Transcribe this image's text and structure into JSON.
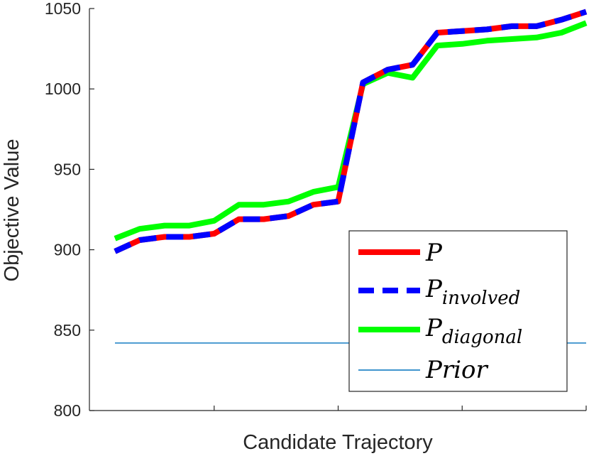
{
  "chart_data": {
    "type": "line",
    "title": "",
    "xlabel": "Candidate Trajectory",
    "ylabel": "Objective Value",
    "ylim": [
      800,
      1050
    ],
    "yticks": [
      800,
      850,
      900,
      950,
      1000,
      1050
    ],
    "xlim": [
      1,
      20
    ],
    "x_tick_positions": [
      5,
      10,
      15,
      20
    ],
    "x_tick_labels": [
      "",
      "",
      "",
      ""
    ],
    "grid": false,
    "legend_position": "bottom-right",
    "x": [
      1,
      2,
      3,
      4,
      5,
      6,
      7,
      8,
      9,
      10,
      11,
      12,
      13,
      14,
      15,
      16,
      17,
      18,
      19,
      20
    ],
    "series": [
      {
        "name_main": "P",
        "name_sub": "",
        "color": "#ff0000",
        "style": "solid",
        "values": [
          899,
          906,
          908,
          908,
          910,
          919,
          919,
          921,
          928,
          930,
          1004,
          1012,
          1015,
          1035,
          1036,
          1037,
          1039,
          1039,
          1043,
          1048
        ]
      },
      {
        "name_main": "P",
        "name_sub": "involved",
        "color": "#0000ff",
        "style": "dashed",
        "values": [
          899,
          906,
          908,
          908,
          910,
          919,
          919,
          921,
          928,
          930,
          1004,
          1012,
          1015,
          1035,
          1036,
          1037,
          1039,
          1039,
          1043,
          1048
        ]
      },
      {
        "name_main": "P",
        "name_sub": "diagonal",
        "color": "#00ff00",
        "style": "solid",
        "values": [
          907,
          913,
          915,
          915,
          918,
          928,
          928,
          930,
          936,
          939,
          1003,
          1010,
          1007,
          1027,
          1028,
          1030,
          1031,
          1032,
          1035,
          1041
        ]
      },
      {
        "name_main": "Prior",
        "name_sub": "",
        "color": "#0072bd",
        "style": "thin",
        "values": [
          842,
          842,
          842,
          842,
          842,
          842,
          842,
          842,
          842,
          842,
          842,
          842,
          842,
          842,
          842,
          842,
          842,
          842,
          842,
          842
        ]
      }
    ]
  }
}
